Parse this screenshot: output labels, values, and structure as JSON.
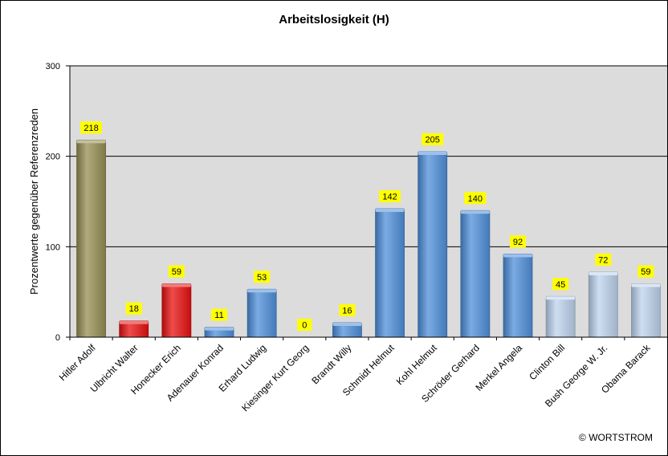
{
  "chart_data": {
    "type": "bar",
    "title": "Arbeitslosigkeit (H)",
    "ylabel": "Prozentwerte  gegenüber Referenzreden",
    "xlabel": "",
    "ylim": [
      0,
      300
    ],
    "yticks": [
      0,
      100,
      200,
      300
    ],
    "grid": true,
    "legend": "none",
    "categories": [
      "Hitler Adolf",
      "Ulbricht Walter",
      "Honecker Erich",
      "Adenauer Konrad",
      "Erhard Ludwig",
      "Kiesinger Kurt Georg",
      "Brandt Willy",
      "Schmidt Helmut",
      "Kohl Helmut",
      "Schröder Gerhard",
      "Merkel Angela",
      "Clinton Bill",
      "Bush George W. Jr.",
      "Obama Barack"
    ],
    "values": [
      218,
      18,
      59,
      11,
      53,
      0,
      16,
      142,
      205,
      140,
      92,
      45,
      72,
      59
    ],
    "colors": [
      "#958E53",
      "#E81010",
      "#E81010",
      "#4F8FDA",
      "#4F8FDA",
      "#4F8FDA",
      "#4F8FDA",
      "#4F8FDA",
      "#4F8FDA",
      "#4F8FDA",
      "#4F8FDA",
      "#BDD3EE",
      "#BDD3EE",
      "#BDD3EE"
    ],
    "plot_background": "#DCDCDC",
    "label_background": "#FFFF00"
  },
  "copyright": "© WORTSTROM"
}
